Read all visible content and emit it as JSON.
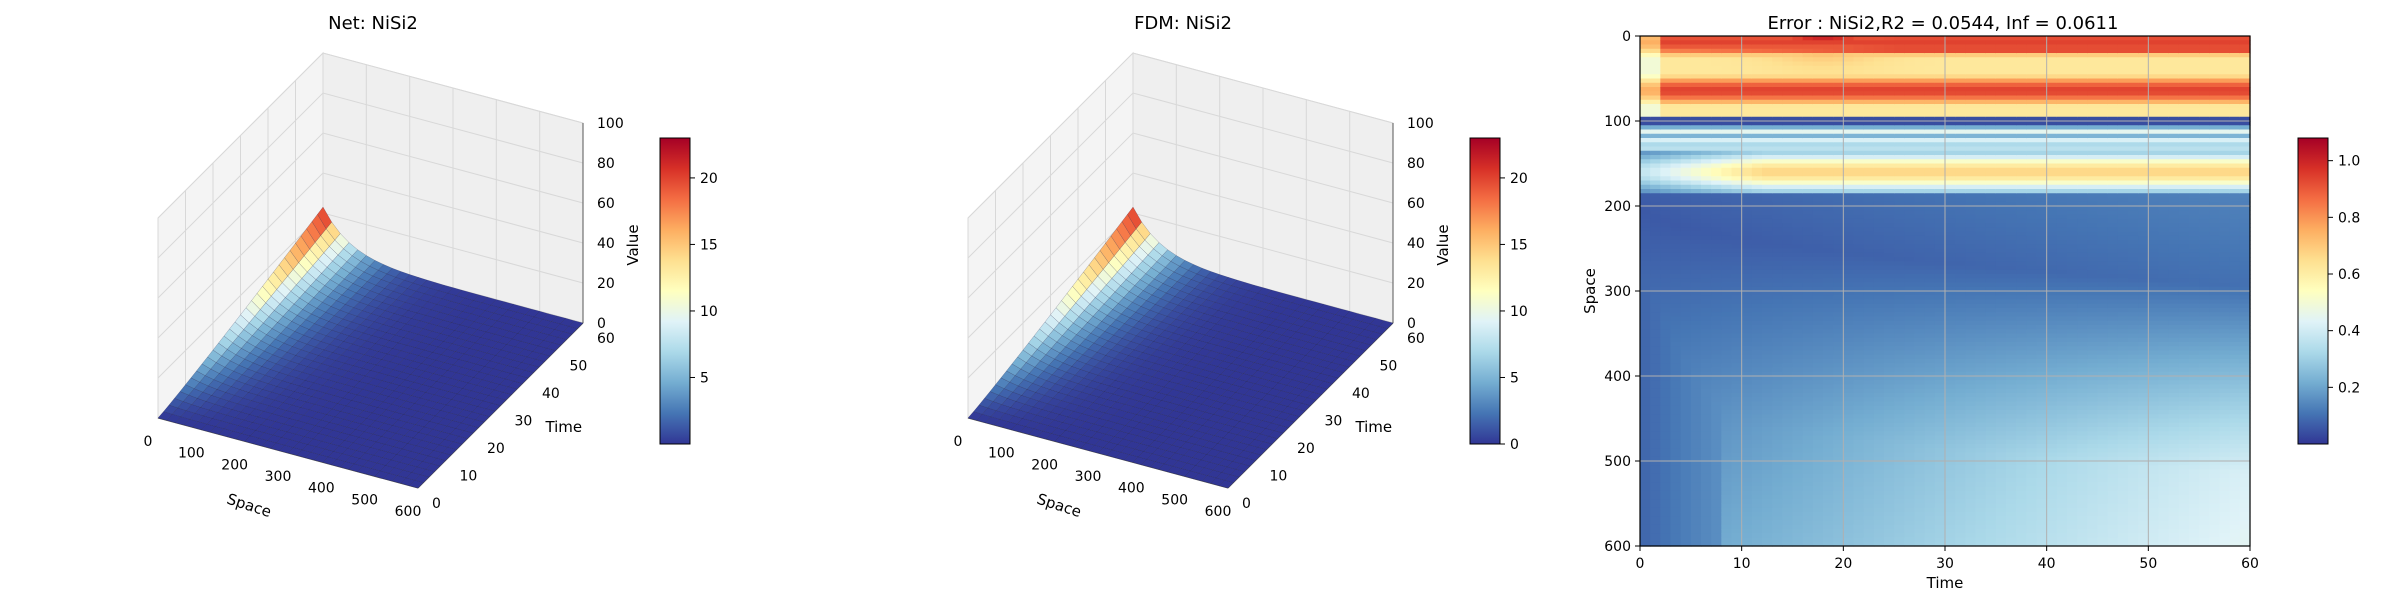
{
  "colors": {
    "colormap": [
      "#313695",
      "#4575b4",
      "#74add1",
      "#abd9e9",
      "#e0f3f8",
      "#ffffbf",
      "#fee090",
      "#fdae61",
      "#f46d43",
      "#d73027",
      "#a50026"
    ],
    "pane": "#f2f2f2",
    "grid": "#d8d8d8"
  },
  "chart_data": [
    {
      "type": "surface",
      "title": "Net: NiSi2",
      "xlabel": "Space",
      "ylabel": "Time",
      "zlabel": "Value",
      "xlim": [
        0,
        600
      ],
      "ylim": [
        0,
        60
      ],
      "zlim": [
        0,
        100
      ],
      "x_ticks": [
        "0",
        "100",
        "200",
        "300",
        "400",
        "500",
        "600"
      ],
      "y_ticks": [
        "0",
        "10",
        "20",
        "30",
        "40",
        "50",
        "60"
      ],
      "z_ticks": [
        "0",
        "20",
        "40",
        "60",
        "80",
        "100"
      ],
      "peak": {
        "space": 0,
        "time": 60,
        "value": 23
      },
      "colorbar": {
        "range": [
          0,
          23
        ],
        "ticks": [
          "5",
          "10",
          "15",
          "20"
        ]
      }
    },
    {
      "type": "surface",
      "title": "FDM: NiSi2",
      "xlabel": "Space",
      "ylabel": "Time",
      "zlabel": "Value",
      "xlim": [
        0,
        600
      ],
      "ylim": [
        0,
        60
      ],
      "zlim": [
        0,
        100
      ],
      "x_ticks": [
        "0",
        "100",
        "200",
        "300",
        "400",
        "500",
        "600"
      ],
      "y_ticks": [
        "0",
        "10",
        "20",
        "30",
        "40",
        "50",
        "60"
      ],
      "z_ticks": [
        "0",
        "20",
        "40",
        "60",
        "80",
        "100"
      ],
      "peak": {
        "space": 0,
        "time": 60,
        "value": 23
      },
      "colorbar": {
        "range": [
          0,
          23
        ],
        "ticks": [
          "0",
          "5",
          "10",
          "15",
          "20"
        ]
      }
    },
    {
      "type": "heatmap",
      "title": "Error : NiSi2,R2 = 0.0544, Inf = 0.0611",
      "xlabel": "Time",
      "ylabel": "Space",
      "xlim": [
        0,
        60
      ],
      "ylim": [
        600,
        0
      ],
      "x_ticks": [
        "0",
        "10",
        "20",
        "30",
        "40",
        "50",
        "60"
      ],
      "y_ticks": [
        "0",
        "100",
        "200",
        "300",
        "400",
        "500",
        "600"
      ],
      "grid": true,
      "colorbar": {
        "range": [
          0.0,
          1.08
        ],
        "ticks": [
          "0.2",
          "0.4",
          "0.6",
          "0.8",
          "1.0"
        ]
      }
    }
  ]
}
